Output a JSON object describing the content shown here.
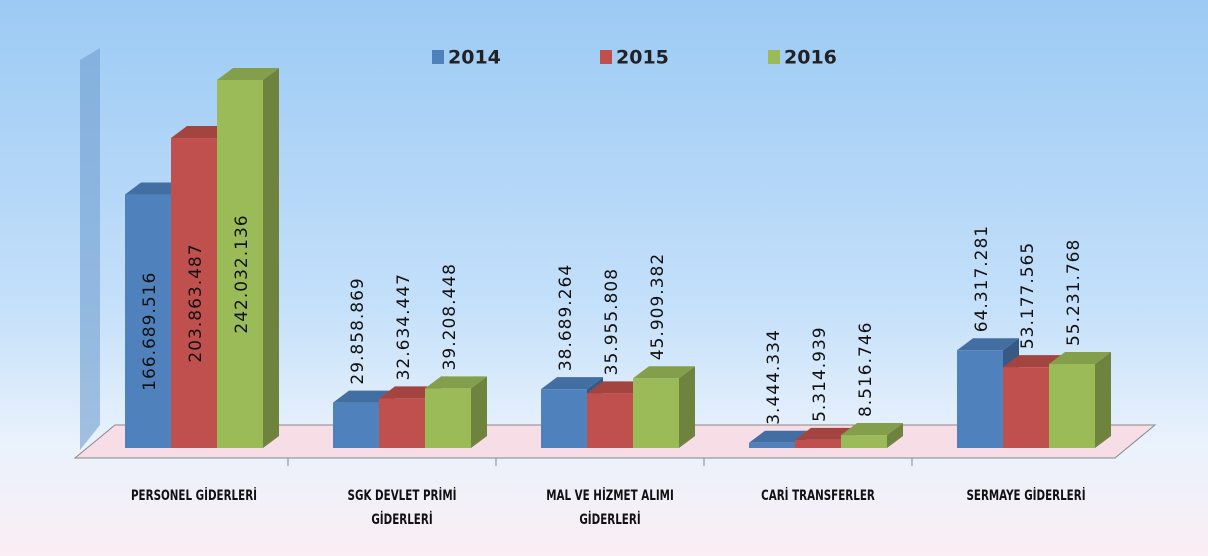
{
  "chart_data": {
    "type": "bar3d",
    "categories": [
      "PERSONEL GİDERLERİ",
      "SGK DEVLET PRİMİ GİDERLERİ",
      "MAL VE HİZMET ALIMI GİDERLERİ",
      "CARİ TRANSFERLER",
      "SERMAYE GİDERLERİ"
    ],
    "series": [
      {
        "name": "2014",
        "color": "#4f81bd",
        "values": [
          166689516,
          29858869,
          38689264,
          3444334,
          64317281
        ],
        "value_labels": [
          "166.689.516",
          "29.858.869",
          "38.689.264",
          "3.444.334",
          "64.317.281"
        ]
      },
      {
        "name": "2015",
        "color": "#c0504d",
        "values": [
          203863487,
          32634447,
          35955808,
          5314939,
          53177565
        ],
        "value_labels": [
          "203.863.487",
          "32.634.447",
          "35.955.808",
          "5.314.939",
          "53.177.565"
        ]
      },
      {
        "name": "2016",
        "color": "#9bbb59",
        "values": [
          242032136,
          39208448,
          45909382,
          8516746,
          55231768
        ],
        "value_labels": [
          "242.032.136",
          "39.208.448",
          "45.909.382",
          "8.516.746",
          "55.231.768"
        ]
      }
    ],
    "legend": "top"
  }
}
